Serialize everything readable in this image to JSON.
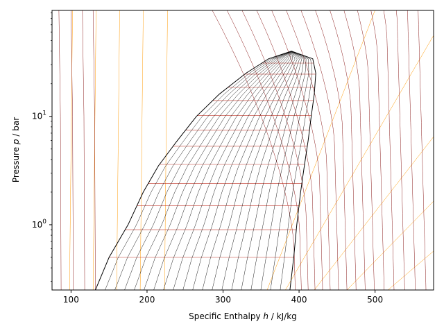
{
  "chart_data": {
    "type": "line",
    "title": "",
    "xlabel_prefix": "Specific Enthalpy ",
    "xlabel_symbol": "h",
    "xlabel_suffix": " / kJ/kg",
    "ylabel_prefix": "Pressure ",
    "ylabel_symbol": "p",
    "ylabel_suffix": " / bar",
    "xlim": [
      75,
      577
    ],
    "ylim": [
      0.25,
      95
    ],
    "yscale": "log",
    "grid": false,
    "x_ticks": [
      100,
      200,
      300,
      400,
      500
    ],
    "x_tick_labels": [
      "100",
      "200",
      "300",
      "400",
      "500"
    ],
    "y_ticks": [
      1,
      10
    ],
    "y_tick_base": "10",
    "y_tick_exponents": [
      "0",
      "1"
    ],
    "colors": {
      "saturation": "#000000",
      "quality": "#000000",
      "isotherm": "#8b1a1a",
      "isentrope": "#ff9900",
      "isobar_in_dome": "#c0392b"
    },
    "critical_point": {
      "h": 390,
      "p": 40
    },
    "saturation_liquid": [
      [
        132,
        0.25
      ],
      [
        150,
        0.5
      ],
      [
        175,
        1.0
      ],
      [
        195,
        2.0
      ],
      [
        215,
        3.5
      ],
      [
        240,
        6.0
      ],
      [
        265,
        10.0
      ],
      [
        295,
        16.0
      ],
      [
        330,
        25.0
      ],
      [
        360,
        34.0
      ],
      [
        390,
        40.0
      ]
    ],
    "saturation_vapor": [
      [
        388,
        0.25
      ],
      [
        393,
        0.5
      ],
      [
        397,
        1.0
      ],
      [
        402,
        2.0
      ],
      [
        407,
        3.5
      ],
      [
        412,
        6.0
      ],
      [
        416,
        10.0
      ],
      [
        420,
        16.0
      ],
      [
        422,
        25.0
      ],
      [
        418,
        34.0
      ],
      [
        390,
        40.0
      ]
    ],
    "quality_lines": [
      0.05,
      0.1,
      0.15,
      0.2,
      0.25,
      0.3,
      0.35,
      0.4,
      0.45,
      0.5,
      0.55,
      0.6,
      0.65,
      0.7,
      0.75,
      0.8,
      0.85,
      0.9,
      0.95
    ],
    "isobar_levels_in_dome": [
      0.5,
      0.9,
      1.5,
      2.4,
      3.6,
      5.3,
      7.5,
      10.2,
      14.0,
      18.5,
      24.5,
      31.0
    ],
    "isotherms_liquid_h": [
      87,
      103,
      118,
      132
    ],
    "isotherms_vapor_h_at_low_p": [
      395,
      403,
      412,
      421,
      431,
      441,
      452,
      463,
      475,
      487,
      499,
      512,
      525,
      539,
      553,
      567
    ],
    "isentropes_liquid_h": [
      100,
      131,
      162,
      193,
      225
    ],
    "isentropes_vapor_h_at_low_p": [
      358,
      382,
      420,
      463,
      517
    ]
  }
}
